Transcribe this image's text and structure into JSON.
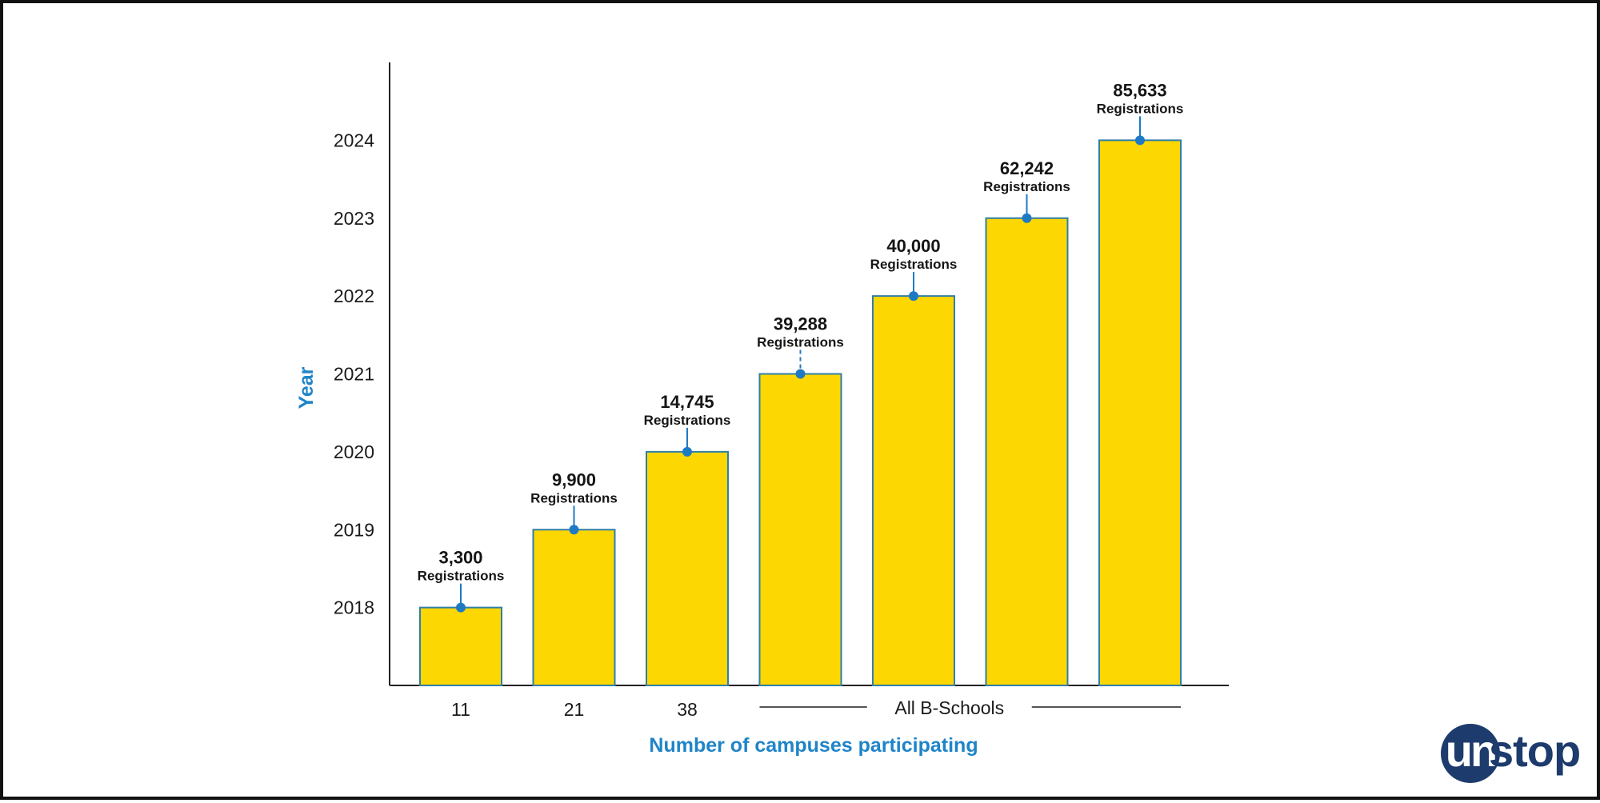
{
  "chart_data": {
    "type": "bar",
    "ylabel": "Year",
    "xlabel": "Number of campuses participating",
    "y_ticks": [
      "2018",
      "2019",
      "2020",
      "2021",
      "2022",
      "2023",
      "2024"
    ],
    "ylim": [
      2017,
      2025
    ],
    "categories": [
      "11",
      "21",
      "38",
      "All B-Schools",
      "All B-Schools",
      "All B-Schools",
      "All B-Schools"
    ],
    "x_tick_labels": [
      "11",
      "21",
      "38"
    ],
    "group_label": "All B-Schools",
    "years": [
      2018,
      2019,
      2020,
      2021,
      2022,
      2023,
      2024
    ],
    "registration_values": [
      "3,300",
      "9,900",
      "14,745",
      "39,288",
      "40,000",
      "62,242",
      "85,633"
    ],
    "value_sublabel": "Registrations",
    "bar_color": "#fdd702",
    "bar_edge_color": "#2f7fa8",
    "marker_color": "#1f7ac4",
    "axis_title_color": "#1f84c8"
  },
  "brand": {
    "logo_part_1": "un",
    "logo_part_2": "stop",
    "logo_color": "#1d3b6c"
  }
}
